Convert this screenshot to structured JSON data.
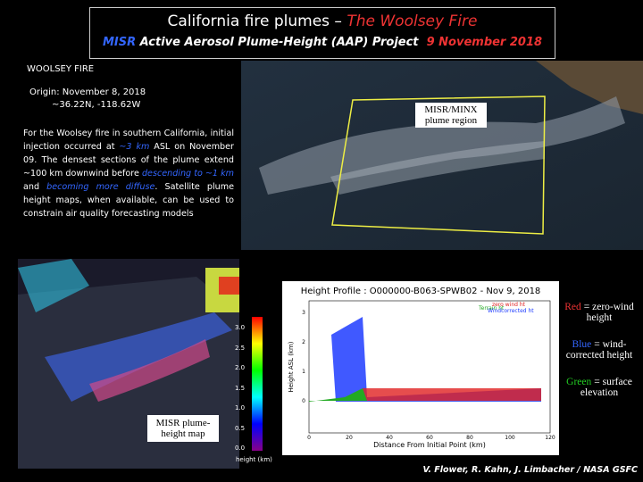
{
  "header": {
    "title_prefix": "California fire plumes – ",
    "title_highlight": "The Woolsey Fire",
    "subtitle_misr": "MISR",
    "subtitle_project": "Active Aerosol Plume-Height (AAP) Project",
    "subtitle_date": "9 November 2018"
  },
  "info": {
    "label": "WOOLSEY FIRE",
    "origin": "Origin: November 8, 2018",
    "coords": "~36.22N, -118.62W",
    "paragraph": [
      "For the Woolsey fire in southern California, initial injection occurred at ",
      "~3 km",
      " ASL on November 09. The densest sections of the plume extend ~100 km downwind before ",
      "descending to ~1 km",
      " and ",
      "becoming more diffuse",
      ". Satellite plume height maps, when available, can be used to constrain air quality forecasting models"
    ]
  },
  "satellite": {
    "label": "MISR/MINX plume region"
  },
  "map": {
    "label": "MISR plume-height map",
    "colorbar_ticks": [
      "3.0",
      "2.5",
      "2.0",
      "1.5",
      "1.0",
      "0.5",
      "0.0"
    ],
    "colorbar_unit": "height (km)"
  },
  "profile": {
    "title": "Height Profile : O000000-B063-SPWB02 - Nov 9, 2018",
    "legend": [
      "Terrain ht",
      "zero wind ht",
      "Windcorrected ht"
    ],
    "y_label": "Height ASL (km)",
    "x_label": "Distance From Initial Point (km)",
    "y_ticks": [
      "0",
      "1",
      "2",
      "3"
    ],
    "x_ticks": [
      "0",
      "20",
      "40",
      "60",
      "80",
      "100",
      "120"
    ]
  },
  "legend": [
    {
      "key": "Red",
      "text": "= zero-wind height"
    },
    {
      "key": "Blue",
      "text": "= wind-corrected height"
    },
    {
      "key": "Green",
      "text": "= surface elevation"
    }
  ],
  "credit": "V. Flower, R. Kahn, J. Limbacher / NASA GSFC"
}
